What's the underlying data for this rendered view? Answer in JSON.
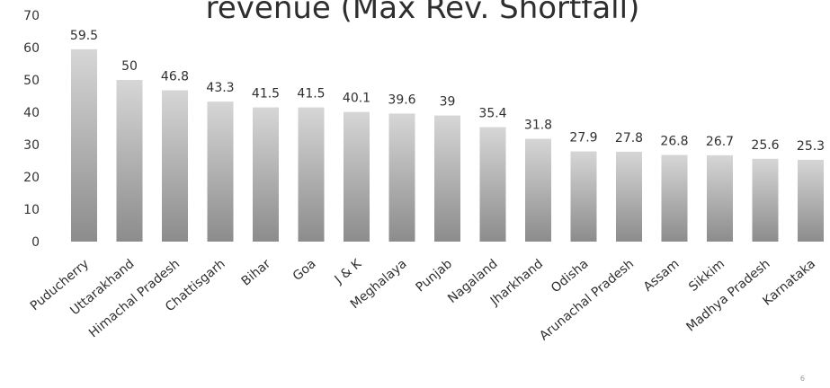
{
  "chart_data": {
    "type": "bar",
    "title": "revenue (Max Rev. Shortfall)",
    "categories": [
      "Puducherry",
      "Uttarakhand",
      "Himachal Pradesh",
      "Chattisgarh",
      "Bihar",
      "Goa",
      "J & K",
      "Meghalaya",
      "Punjab",
      "Nagaland",
      "Jharkhand",
      "Odisha",
      "Arunachal Pradesh",
      "Assam",
      "Sikkim",
      "Madhya Pradesh",
      "Karnataka"
    ],
    "values": [
      59.5,
      50,
      46.8,
      43.3,
      41.5,
      41.5,
      40.1,
      39.6,
      39,
      35.4,
      31.8,
      27.9,
      27.8,
      26.8,
      26.7,
      25.6,
      25.3
    ],
    "value_labels": [
      "59.5",
      "50",
      "46.8",
      "43.3",
      "41.5",
      "41.5",
      "40.1",
      "39.6",
      "39",
      "35.4",
      "31.8",
      "27.9",
      "27.8",
      "26.8",
      "26.7",
      "25.6",
      "25.3"
    ],
    "ylim": [
      0,
      70
    ],
    "yticks": [
      "0",
      "10",
      "20",
      "30",
      "40",
      "50",
      "60",
      "70"
    ],
    "grid": false,
    "legend": "none",
    "bar_color_top": "#d6d6d6",
    "bar_color_bottom": "#8c8c8c"
  },
  "page_number": "6"
}
